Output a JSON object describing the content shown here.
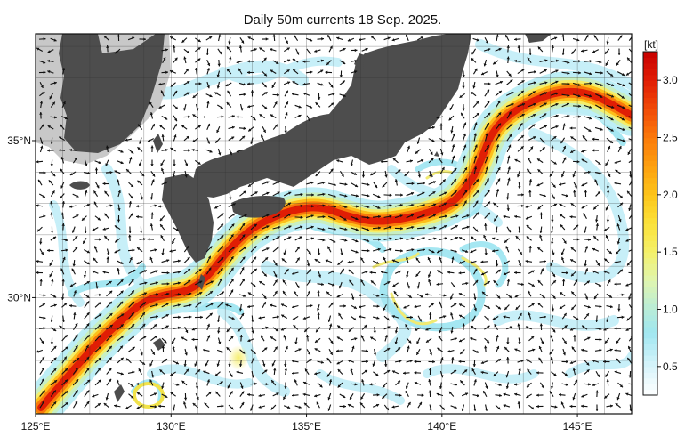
{
  "title": "Daily 50m currents 18 Sep. 2025.",
  "map": {
    "lon_range": [
      125,
      147
    ],
    "lat_range": [
      26.3,
      38.4
    ],
    "lon_ticks": [
      {
        "value": 125,
        "label": "125°E"
      },
      {
        "value": 130,
        "label": "130°E"
      },
      {
        "value": 135,
        "label": "135°E"
      },
      {
        "value": 140,
        "label": "140°E"
      },
      {
        "value": 145,
        "label": "145°E"
      }
    ],
    "lat_ticks": [
      {
        "value": 30,
        "label": "30°N"
      },
      {
        "value": 35,
        "label": "35°N"
      }
    ],
    "grid": true,
    "colors": {
      "land": "#4d4d4d",
      "land_shelf": "#c8c8c8",
      "water": "#ffffff",
      "vector": "#111111"
    }
  },
  "colorbar": {
    "unit": "[kt]",
    "range": [
      0.25,
      3.25
    ],
    "tick_values": [
      0.5,
      1.0,
      1.5,
      2.0,
      2.5,
      3.0
    ],
    "tick_labels": [
      "0.5",
      "1.0",
      "1.5",
      "2.0",
      "2.5",
      "3.0"
    ],
    "stops": [
      {
        "v": 0.25,
        "c": "#ffffff"
      },
      {
        "v": 0.5,
        "c": "#d8f4fb"
      },
      {
        "v": 0.8,
        "c": "#9fe6f0"
      },
      {
        "v": 1.0,
        "c": "#b8ecd8"
      },
      {
        "v": 1.25,
        "c": "#dff5b0"
      },
      {
        "v": 1.5,
        "c": "#f4f06a"
      },
      {
        "v": 1.75,
        "c": "#fbe23a"
      },
      {
        "v": 2.0,
        "c": "#fdc51a"
      },
      {
        "v": 2.25,
        "c": "#fda00f"
      },
      {
        "v": 2.5,
        "c": "#fb7a0a"
      },
      {
        "v": 2.75,
        "c": "#f14a07"
      },
      {
        "v": 3.0,
        "c": "#e01e05"
      },
      {
        "v": 3.25,
        "c": "#c80000"
      }
    ]
  },
  "kuroshio_axis": [
    [
      125.2,
      26.5
    ],
    [
      126.2,
      27.5
    ],
    [
      127.2,
      28.5
    ],
    [
      128.2,
      29.3
    ],
    [
      129.0,
      29.9
    ],
    [
      129.8,
      30.1
    ],
    [
      130.6,
      30.2
    ],
    [
      131.3,
      30.6
    ],
    [
      132.0,
      31.4
    ],
    [
      132.8,
      32.1
    ],
    [
      133.6,
      32.5
    ],
    [
      134.5,
      32.8
    ],
    [
      135.5,
      32.9
    ],
    [
      136.5,
      32.6
    ],
    [
      137.5,
      32.4
    ],
    [
      138.5,
      32.5
    ],
    [
      139.5,
      32.7
    ],
    [
      140.4,
      33.0
    ],
    [
      141.1,
      33.7
    ],
    [
      141.5,
      34.5
    ],
    [
      141.8,
      35.2
    ],
    [
      142.4,
      35.8
    ],
    [
      143.4,
      36.3
    ],
    [
      144.5,
      36.6
    ],
    [
      145.5,
      36.5
    ],
    [
      146.4,
      36.1
    ],
    [
      147.0,
      35.8
    ]
  ]
}
